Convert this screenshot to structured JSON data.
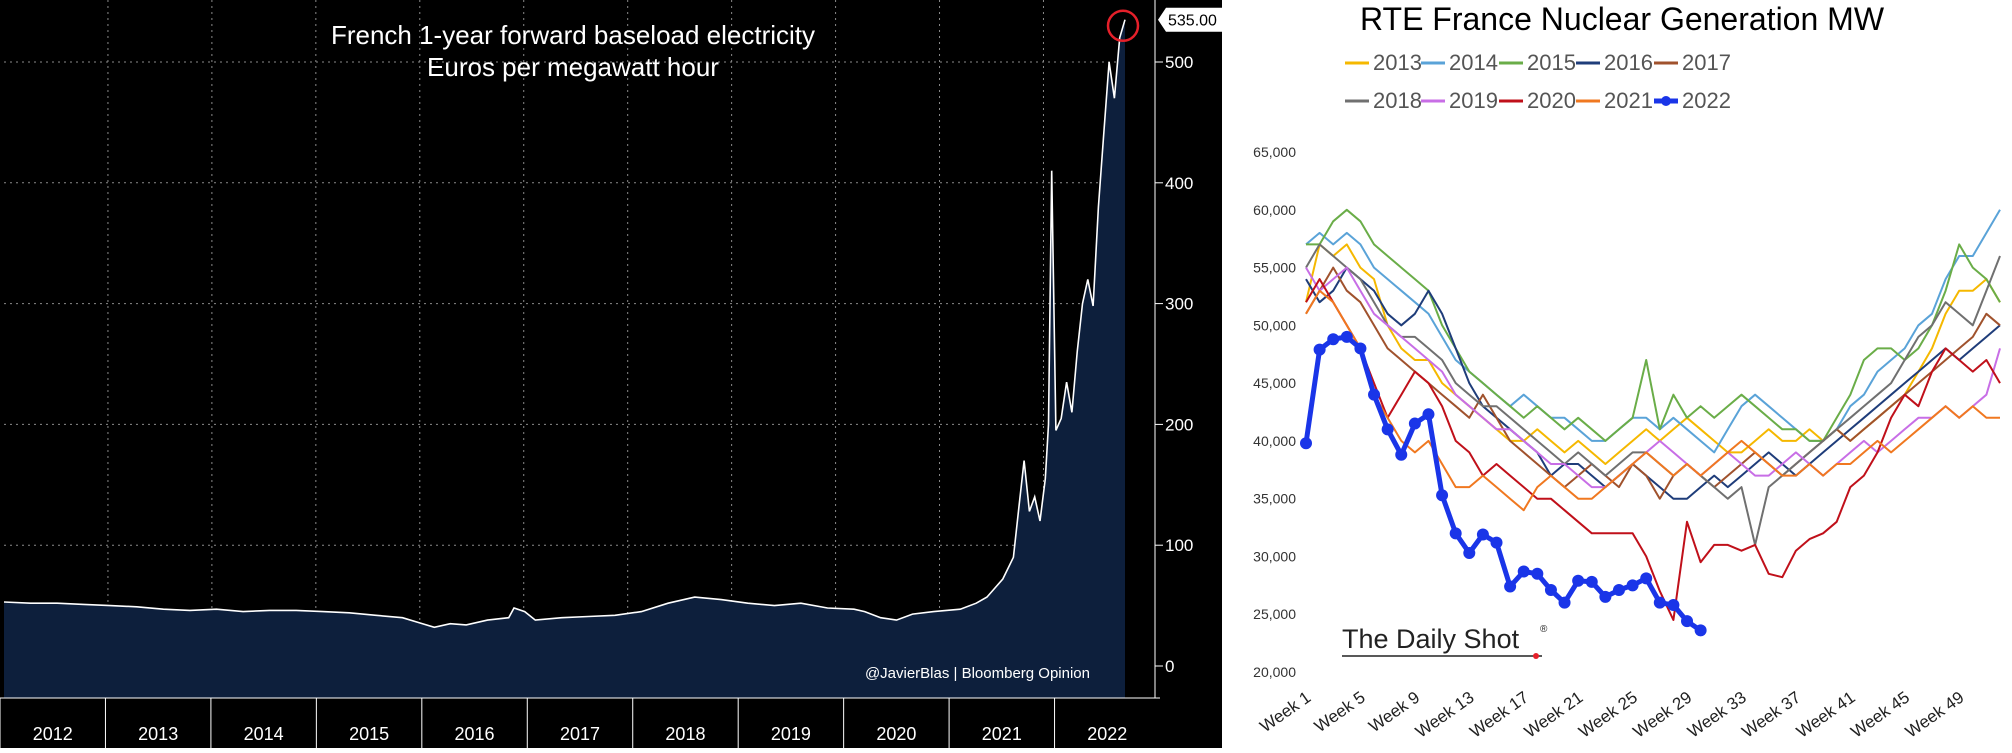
{
  "chart_data": [
    {
      "type": "area",
      "title": "French 1-year forward baseload electricity",
      "subtitle": "Euros per megawatt hour",
      "last_value_label": "535.00",
      "watermark": "@JavierBlas  |  Bloomberg Opinion",
      "x_tick_labels": [
        "2012",
        "2013",
        "2014",
        "2015",
        "2016",
        "2017",
        "2018",
        "2019",
        "2020",
        "2021",
        "2022"
      ],
      "y_tick_labels": [
        "0",
        "100",
        "200",
        "300",
        "400",
        "500"
      ],
      "ylim": [
        0,
        560
      ],
      "xlim": [
        2012.0,
        2022.55
      ],
      "series": [
        {
          "x": [
            2012.0,
            2012.25,
            2012.5,
            2012.75,
            2013.0,
            2013.25,
            2013.5,
            2013.75,
            2014.0,
            2014.25,
            2014.5,
            2014.75,
            2015.0,
            2015.25,
            2015.5,
            2015.75,
            2015.9,
            2016.05,
            2016.2,
            2016.35,
            2016.55,
            2016.75,
            2016.8,
            2016.9,
            2017.0,
            2017.25,
            2017.5,
            2017.75,
            2018.0,
            2018.25,
            2018.5,
            2018.75,
            2019.0,
            2019.25,
            2019.5,
            2019.75,
            2020.0,
            2020.1,
            2020.25,
            2020.4,
            2020.55,
            2020.75,
            2021.0,
            2021.15,
            2021.25,
            2021.3,
            2021.4,
            2021.5,
            2021.55,
            2021.6,
            2021.65,
            2021.7,
            2021.75,
            2021.8,
            2021.83,
            2021.86,
            2021.9,
            2021.95,
            2022.0,
            2022.05,
            2022.1,
            2022.15,
            2022.2,
            2022.25,
            2022.3,
            2022.35,
            2022.4,
            2022.45,
            2022.5,
            2022.55
          ],
          "y": [
            53,
            52,
            52,
            51,
            50,
            49,
            47,
            46,
            47,
            45,
            46,
            46,
            45,
            44,
            42,
            40,
            36,
            32,
            35,
            34,
            38,
            40,
            48,
            45,
            38,
            40,
            41,
            42,
            45,
            52,
            57,
            55,
            52,
            50,
            52,
            48,
            47,
            45,
            40,
            38,
            43,
            45,
            47,
            52,
            57,
            62,
            72,
            90,
            130,
            170,
            128,
            140,
            120,
            155,
            200,
            410,
            195,
            205,
            235,
            210,
            260,
            300,
            320,
            298,
            380,
            440,
            500,
            470,
            520,
            535
          ],
          "color": "#ffffff",
          "fill": "#0d1f3c"
        }
      ]
    },
    {
      "type": "line",
      "title": "RTE France Nuclear Generation MW",
      "x_tick_labels": [
        "Week 1",
        "Week 5",
        "Week 9",
        "Week 13",
        "Week 17",
        "Week 21",
        "Week 25",
        "Week 29",
        "Week 33",
        "Week 37",
        "Week 41",
        "Week 45",
        "Week 49"
      ],
      "y_tick_labels": [
        "20,000",
        "25,000",
        "30,000",
        "35,000",
        "40,000",
        "45,000",
        "50,000",
        "55,000",
        "60,000",
        "65,000"
      ],
      "ylim": [
        20000,
        65000
      ],
      "xlim": [
        1,
        52
      ],
      "watermark": "The Daily Shot",
      "series": [
        {
          "name": "2013",
          "color": "#f5b800",
          "values": [
            52000,
            57000,
            56000,
            57000,
            55000,
            54000,
            50000,
            48000,
            47000,
            47000,
            45000,
            44000,
            43000,
            42000,
            41000,
            40000,
            40000,
            41000,
            40000,
            39000,
            40000,
            39000,
            38000,
            39000,
            40000,
            41000,
            40000,
            41000,
            42000,
            41000,
            40000,
            39000,
            39000,
            40000,
            41000,
            40000,
            40000,
            41000,
            40000,
            41000,
            40000,
            41000,
            42000,
            43000,
            44000,
            46000,
            48000,
            51000,
            53000,
            53000,
            54000,
            52000
          ]
        },
        {
          "name": "2014",
          "color": "#5aa3d8",
          "values": [
            57000,
            58000,
            57000,
            58000,
            57000,
            55000,
            54000,
            53000,
            52000,
            51000,
            49000,
            47000,
            46000,
            45000,
            44000,
            43000,
            44000,
            43000,
            42000,
            42000,
            41000,
            40000,
            40000,
            41000,
            42000,
            42000,
            41000,
            42000,
            41000,
            40000,
            39000,
            41000,
            43000,
            44000,
            43000,
            42000,
            41000,
            40000,
            40000,
            41000,
            43000,
            44000,
            46000,
            47000,
            48000,
            50000,
            51000,
            54000,
            56000,
            56000,
            58000,
            60000
          ]
        },
        {
          "name": "2015",
          "color": "#6aad48",
          "values": [
            57000,
            57000,
            59000,
            60000,
            59000,
            57000,
            56000,
            55000,
            54000,
            53000,
            50000,
            48000,
            46000,
            45000,
            44000,
            43000,
            42000,
            43000,
            42000,
            41000,
            42000,
            41000,
            40000,
            41000,
            42000,
            47000,
            41000,
            44000,
            42000,
            43000,
            42000,
            43000,
            44000,
            43000,
            42000,
            41000,
            41000,
            40000,
            40000,
            42000,
            44000,
            47000,
            48000,
            48000,
            47000,
            48000,
            50000,
            53000,
            57000,
            55000,
            54000,
            52000
          ]
        },
        {
          "name": "2016",
          "color": "#1f3d7a",
          "values": [
            54000,
            52000,
            53000,
            55000,
            54000,
            53000,
            51000,
            50000,
            51000,
            53000,
            51000,
            48000,
            45000,
            43000,
            42000,
            41000,
            40000,
            39000,
            37000,
            38000,
            38000,
            37000,
            36000,
            37000,
            38000,
            37000,
            36000,
            35000,
            35000,
            36000,
            37000,
            36000,
            37000,
            38000,
            39000,
            38000,
            37000,
            38000,
            39000,
            40000,
            41000,
            42000,
            43000,
            44000,
            45000,
            46000,
            47000,
            48000,
            47000,
            48000,
            49000,
            50000
          ]
        },
        {
          "name": "2017",
          "color": "#a0522d",
          "values": [
            51000,
            53000,
            55000,
            53000,
            52000,
            50000,
            48000,
            47000,
            46000,
            45000,
            44000,
            43000,
            42000,
            44000,
            42000,
            40000,
            39000,
            38000,
            37000,
            36000,
            37000,
            38000,
            37000,
            36000,
            38000,
            37000,
            35000,
            37000,
            38000,
            37000,
            36000,
            37000,
            38000,
            39000,
            38000,
            37000,
            38000,
            39000,
            40000,
            41000,
            40000,
            41000,
            42000,
            43000,
            44000,
            45000,
            46000,
            47000,
            48000,
            49000,
            51000,
            50000
          ]
        },
        {
          "name": "2018",
          "color": "#707070",
          "values": [
            55000,
            57000,
            56000,
            55000,
            54000,
            52000,
            50000,
            49000,
            49000,
            48000,
            47000,
            45000,
            44000,
            43000,
            43000,
            42000,
            41000,
            40000,
            39000,
            38000,
            39000,
            38000,
            37000,
            38000,
            39000,
            39000,
            38000,
            37000,
            38000,
            37000,
            36000,
            35000,
            36000,
            31000,
            36000,
            37000,
            38000,
            39000,
            40000,
            41000,
            42000,
            43000,
            44000,
            45000,
            47000,
            49000,
            50000,
            52000,
            51000,
            50000,
            53000,
            56000
          ]
        },
        {
          "name": "2019",
          "color": "#c86ee6",
          "values": [
            55000,
            53000,
            54000,
            55000,
            53000,
            51000,
            50000,
            49000,
            48000,
            47000,
            46000,
            44000,
            43000,
            42000,
            41000,
            41000,
            40000,
            39000,
            38000,
            38000,
            37000,
            36000,
            36000,
            37000,
            38000,
            39000,
            40000,
            39000,
            38000,
            37000,
            38000,
            39000,
            38000,
            37000,
            37000,
            38000,
            39000,
            38000,
            37000,
            38000,
            39000,
            40000,
            39000,
            40000,
            41000,
            42000,
            42000,
            43000,
            42000,
            43000,
            44000,
            48000
          ]
        },
        {
          "name": "2020",
          "color": "#c0101a",
          "values": [
            52000,
            54000,
            52000,
            50000,
            48000,
            45000,
            42000,
            44000,
            46000,
            45000,
            43000,
            40000,
            39000,
            37000,
            38000,
            37000,
            36000,
            35000,
            35000,
            34000,
            33000,
            32000,
            32000,
            32000,
            32000,
            30000,
            27000,
            24500,
            33000,
            29500,
            31000,
            31000,
            30500,
            31000,
            28500,
            28200,
            30500,
            31500,
            32000,
            33000,
            36000,
            37000,
            39000,
            42000,
            44000,
            43000,
            46000,
            48000,
            47000,
            46000,
            47000,
            45000
          ]
        },
        {
          "name": "2021",
          "color": "#f07820",
          "values": [
            51000,
            53000,
            52000,
            50000,
            48000,
            44000,
            42000,
            40000,
            39000,
            40000,
            38000,
            36000,
            36000,
            37000,
            36000,
            35000,
            34000,
            36000,
            37000,
            36000,
            35000,
            35000,
            36000,
            37000,
            38000,
            39000,
            38000,
            37000,
            38000,
            37000,
            38000,
            39000,
            40000,
            39000,
            38000,
            37000,
            37000,
            38000,
            37000,
            38000,
            38000,
            39000,
            40000,
            39000,
            40000,
            41000,
            42000,
            43000,
            42000,
            43000,
            42000,
            42000
          ]
        },
        {
          "name": "2022",
          "color": "#1a35e8",
          "values": [
            39800,
            47900,
            48800,
            49000,
            48000,
            44000,
            41000,
            38800,
            41500,
            42300,
            35300,
            32000,
            30300,
            31900,
            31200,
            27400,
            28700,
            28500,
            27100,
            26000,
            27900,
            27800,
            26500,
            27100,
            27500,
            28100,
            26000,
            25800,
            24400,
            23600
          ]
        }
      ]
    }
  ],
  "legend_items": [
    {
      "label": "2013",
      "color": "#f5b800"
    },
    {
      "label": "2014",
      "color": "#5aa3d8"
    },
    {
      "label": "2015",
      "color": "#6aad48"
    },
    {
      "label": "2016",
      "color": "#1f3d7a"
    },
    {
      "label": "2017",
      "color": "#a0522d"
    },
    {
      "label": "2018",
      "color": "#707070"
    },
    {
      "label": "2019",
      "color": "#c86ee6"
    },
    {
      "label": "2020",
      "color": "#c0101a"
    },
    {
      "label": "2021",
      "color": "#f07820"
    },
    {
      "label": "2022",
      "color": "#1a35e8"
    }
  ]
}
